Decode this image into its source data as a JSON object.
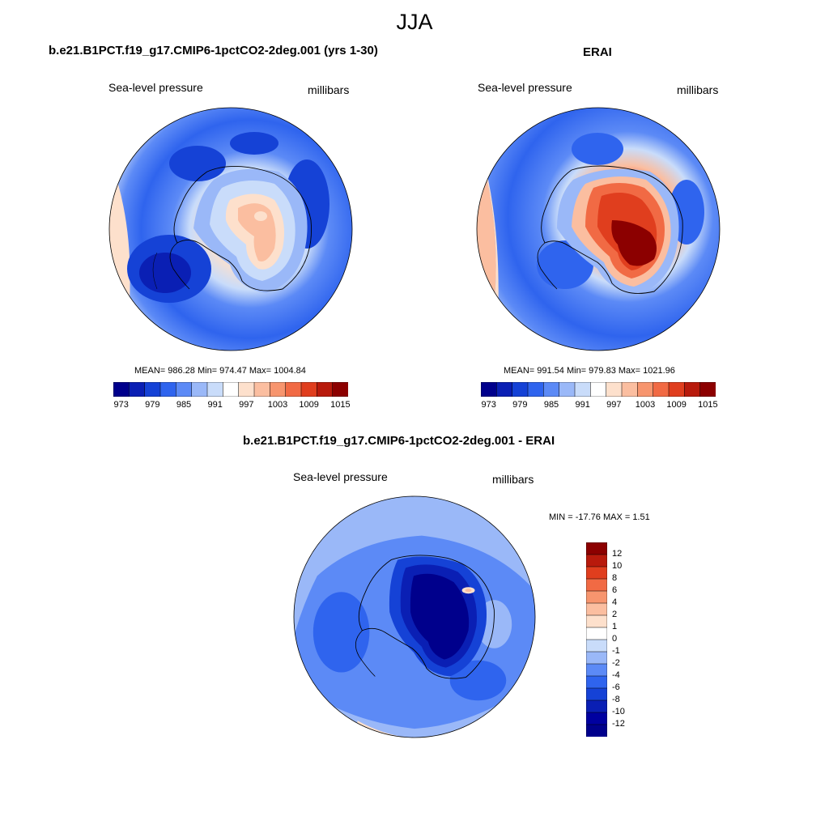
{
  "title": "JJA",
  "panels": [
    {
      "title": "b.e21.B1PCT.f19_g17.CMIP6-1pctCO2-2deg.001 (yrs 1-30)",
      "left_label": "Sea-level pressure",
      "right_label": "millibars",
      "stats": "MEAN= 986.28  Min= 974.47  Max= 1004.84"
    },
    {
      "title": "ERAI",
      "left_label": "Sea-level pressure",
      "right_label": "millibars",
      "stats": "MEAN= 991.54  Min= 979.83  Max= 1021.96"
    },
    {
      "title": "b.e21.B1PCT.f19_g17.CMIP6-1pctCO2-2deg.001 - ERAI",
      "left_label": "Sea-level pressure",
      "right_label": "millibars",
      "stats": "MIN = -17.76 MAX =   1.51"
    }
  ],
  "colorbar_abs": {
    "ticks": [
      "973",
      "979",
      "985",
      "991",
      "997",
      "1003",
      "1009",
      "1015"
    ],
    "colors": [
      "#00008c",
      "#0a1fb4",
      "#1542d6",
      "#2f64ee",
      "#5c8af6",
      "#9ab8f8",
      "#c9dcfa",
      "#ffffff",
      "#fde0cc",
      "#fbbea0",
      "#f7956e",
      "#f16a44",
      "#e03e1e",
      "#b81a0c",
      "#8c0000"
    ]
  },
  "colorbar_diff": {
    "ticks": [
      "12",
      "10",
      "8",
      "6",
      "4",
      "2",
      "1",
      "0",
      "-1",
      "-2",
      "-4",
      "-6",
      "-8",
      "-10",
      "-12"
    ],
    "colors": [
      "#8c0000",
      "#b81a0c",
      "#e03e1e",
      "#f16a44",
      "#f7956e",
      "#fbbea0",
      "#fde0cc",
      "#ffffff",
      "#c9dcfa",
      "#9ab8f8",
      "#5c8af6",
      "#2f64ee",
      "#1542d6",
      "#0a1fb4",
      "#0000a0",
      "#00008c"
    ]
  }
}
